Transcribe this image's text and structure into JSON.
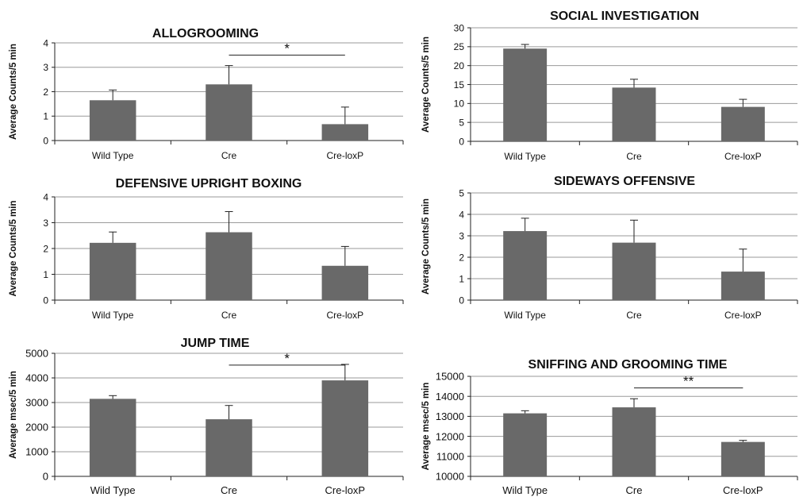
{
  "colors": {
    "bar": "#696969",
    "grid": "#9a9a9a",
    "axis": "#222222",
    "text": "#111111"
  },
  "chart_data": [
    {
      "type": "bar",
      "title": "ALLOGROOMING",
      "ylabel": "Average Counts/5 min",
      "categories": [
        "Wild Type",
        "Cre",
        "Cre-loxP"
      ],
      "values": [
        1.65,
        2.3,
        0.67
      ],
      "errors": [
        0.42,
        0.77,
        0.7
      ],
      "ylim": [
        0,
        4
      ],
      "yticks": [
        0,
        1,
        2,
        3,
        4
      ],
      "grid": true,
      "legend": "none",
      "annotations": [
        {
          "label": "*",
          "from": "Cre",
          "to": "Cre-loxP",
          "y": 3.5
        }
      ]
    },
    {
      "type": "bar",
      "title": "SOCIAL INVESTIGATION",
      "ylabel": "Average Counts/5 min",
      "categories": [
        "Wild Type",
        "Cre",
        "Cre-loxP"
      ],
      "values": [
        24.5,
        14.2,
        9.1
      ],
      "errors": [
        1.1,
        2.2,
        2.0
      ],
      "ylim": [
        0,
        30
      ],
      "yticks": [
        0,
        5,
        10,
        15,
        20,
        25,
        30
      ],
      "grid": true,
      "legend": "none",
      "annotations": []
    },
    {
      "type": "bar",
      "title": "DEFENSIVE UPRIGHT BOXING",
      "ylabel": "Average Counts/5 min",
      "categories": [
        "Wild Type",
        "Cre",
        "Cre-loxP"
      ],
      "values": [
        2.22,
        2.63,
        1.33
      ],
      "errors": [
        0.42,
        0.8,
        0.75
      ],
      "ylim": [
        0,
        4
      ],
      "yticks": [
        0,
        1,
        2,
        3,
        4
      ],
      "grid": true,
      "legend": "none",
      "annotations": []
    },
    {
      "type": "bar",
      "title": "SIDEWAYS OFFENSIVE",
      "ylabel": "Average Counts/5 min",
      "categories": [
        "Wild Type",
        "Cre",
        "Cre-loxP"
      ],
      "values": [
        3.22,
        2.68,
        1.33
      ],
      "errors": [
        0.6,
        1.05,
        1.05
      ],
      "ylim": [
        0,
        5
      ],
      "yticks": [
        0,
        1,
        2,
        3,
        4,
        5
      ],
      "grid": true,
      "legend": "none",
      "annotations": []
    },
    {
      "type": "bar",
      "title": "JUMP TIME",
      "ylabel": "Average msec/5 min",
      "categories": [
        "Wild Type",
        "Cre",
        "Cre-loxP"
      ],
      "values": [
        3150,
        2320,
        3900
      ],
      "errors": [
        130,
        560,
        650
      ],
      "ylim": [
        0,
        5000
      ],
      "yticks": [
        0,
        1000,
        2000,
        3000,
        4000,
        5000
      ],
      "grid": true,
      "legend": "none",
      "annotations": [
        {
          "label": "*",
          "from": "Cre",
          "to": "Cre-loxP",
          "y": 4520
        }
      ]
    },
    {
      "type": "bar",
      "title": "SNIFFING AND GROOMING TIME",
      "ylabel": "Average msec/5 min",
      "categories": [
        "Wild Type",
        "Cre",
        "Cre-loxP"
      ],
      "values": [
        13150,
        13450,
        11720
      ],
      "errors": [
        130,
        430,
        80
      ],
      "ylim": [
        10000,
        15000
      ],
      "yticks": [
        10000,
        11000,
        12000,
        13000,
        14000,
        15000
      ],
      "grid": true,
      "legend": "none",
      "annotations": [
        {
          "label": "**",
          "from": "Cre",
          "to": "Cre-loxP",
          "y": 14420
        }
      ]
    }
  ]
}
